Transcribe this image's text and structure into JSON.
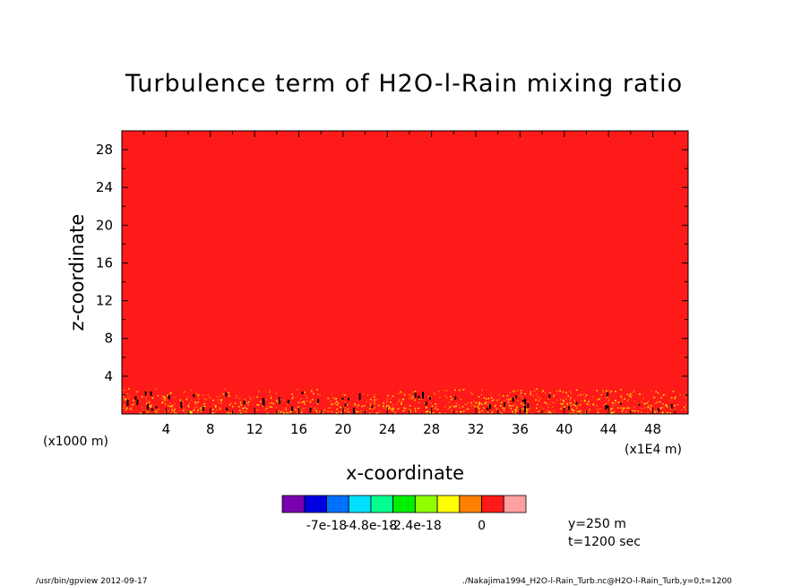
{
  "page": {
    "footer_left": "/usr/bin/gpview  2012-09-17",
    "footer_right": "./Nakajima1994_H2O-l-Rain_Turb.nc@H2O-l-Rain_Turb,y=0,t=1200"
  },
  "chart_data": {
    "type": "heatmap",
    "title": "Turbulence term of H2O-l-Rain mixing ratio",
    "xlabel": "x-coordinate",
    "ylabel": "z-coordinate",
    "x_unit_note": "(x1E4 m)",
    "y_unit_note": "(x1000 m)",
    "xlim": [
      0,
      51.2
    ],
    "ylim": [
      0,
      30
    ],
    "x_ticks": [
      4,
      8,
      12,
      16,
      20,
      24,
      28,
      32,
      36,
      40,
      44,
      48
    ],
    "y_ticks": [
      4,
      8,
      12,
      16,
      20,
      24,
      28
    ],
    "x_tick_labels": [
      "4",
      "8",
      "12",
      "16",
      "20",
      "24",
      "28",
      "32",
      "36",
      "40",
      "44",
      "48"
    ],
    "y_tick_labels": [
      "4",
      "8",
      "12",
      "16",
      "20",
      "24",
      "28"
    ],
    "dominant_level_color": "#ff1a1a",
    "noise_top_z": 2.8,
    "noise_colors": [
      "#ff7a00",
      "#ffee00",
      "#ff1a1a"
    ],
    "colorbar": {
      "colors": [
        "#7a00b0",
        "#0000e0",
        "#0070ff",
        "#00e0ff",
        "#00ff90",
        "#00ee00",
        "#90ff00",
        "#ffff00",
        "#ff8000",
        "#ff1a1a",
        "#ffa0a0"
      ],
      "labels": [
        "-7e-18",
        "-4.8e-18",
        "-2.4e-18",
        "0"
      ],
      "label_after_box": [
        1,
        3,
        5,
        8
      ]
    },
    "annotations": {
      "y": "y=250 m",
      "t": "t=1200 sec"
    }
  }
}
